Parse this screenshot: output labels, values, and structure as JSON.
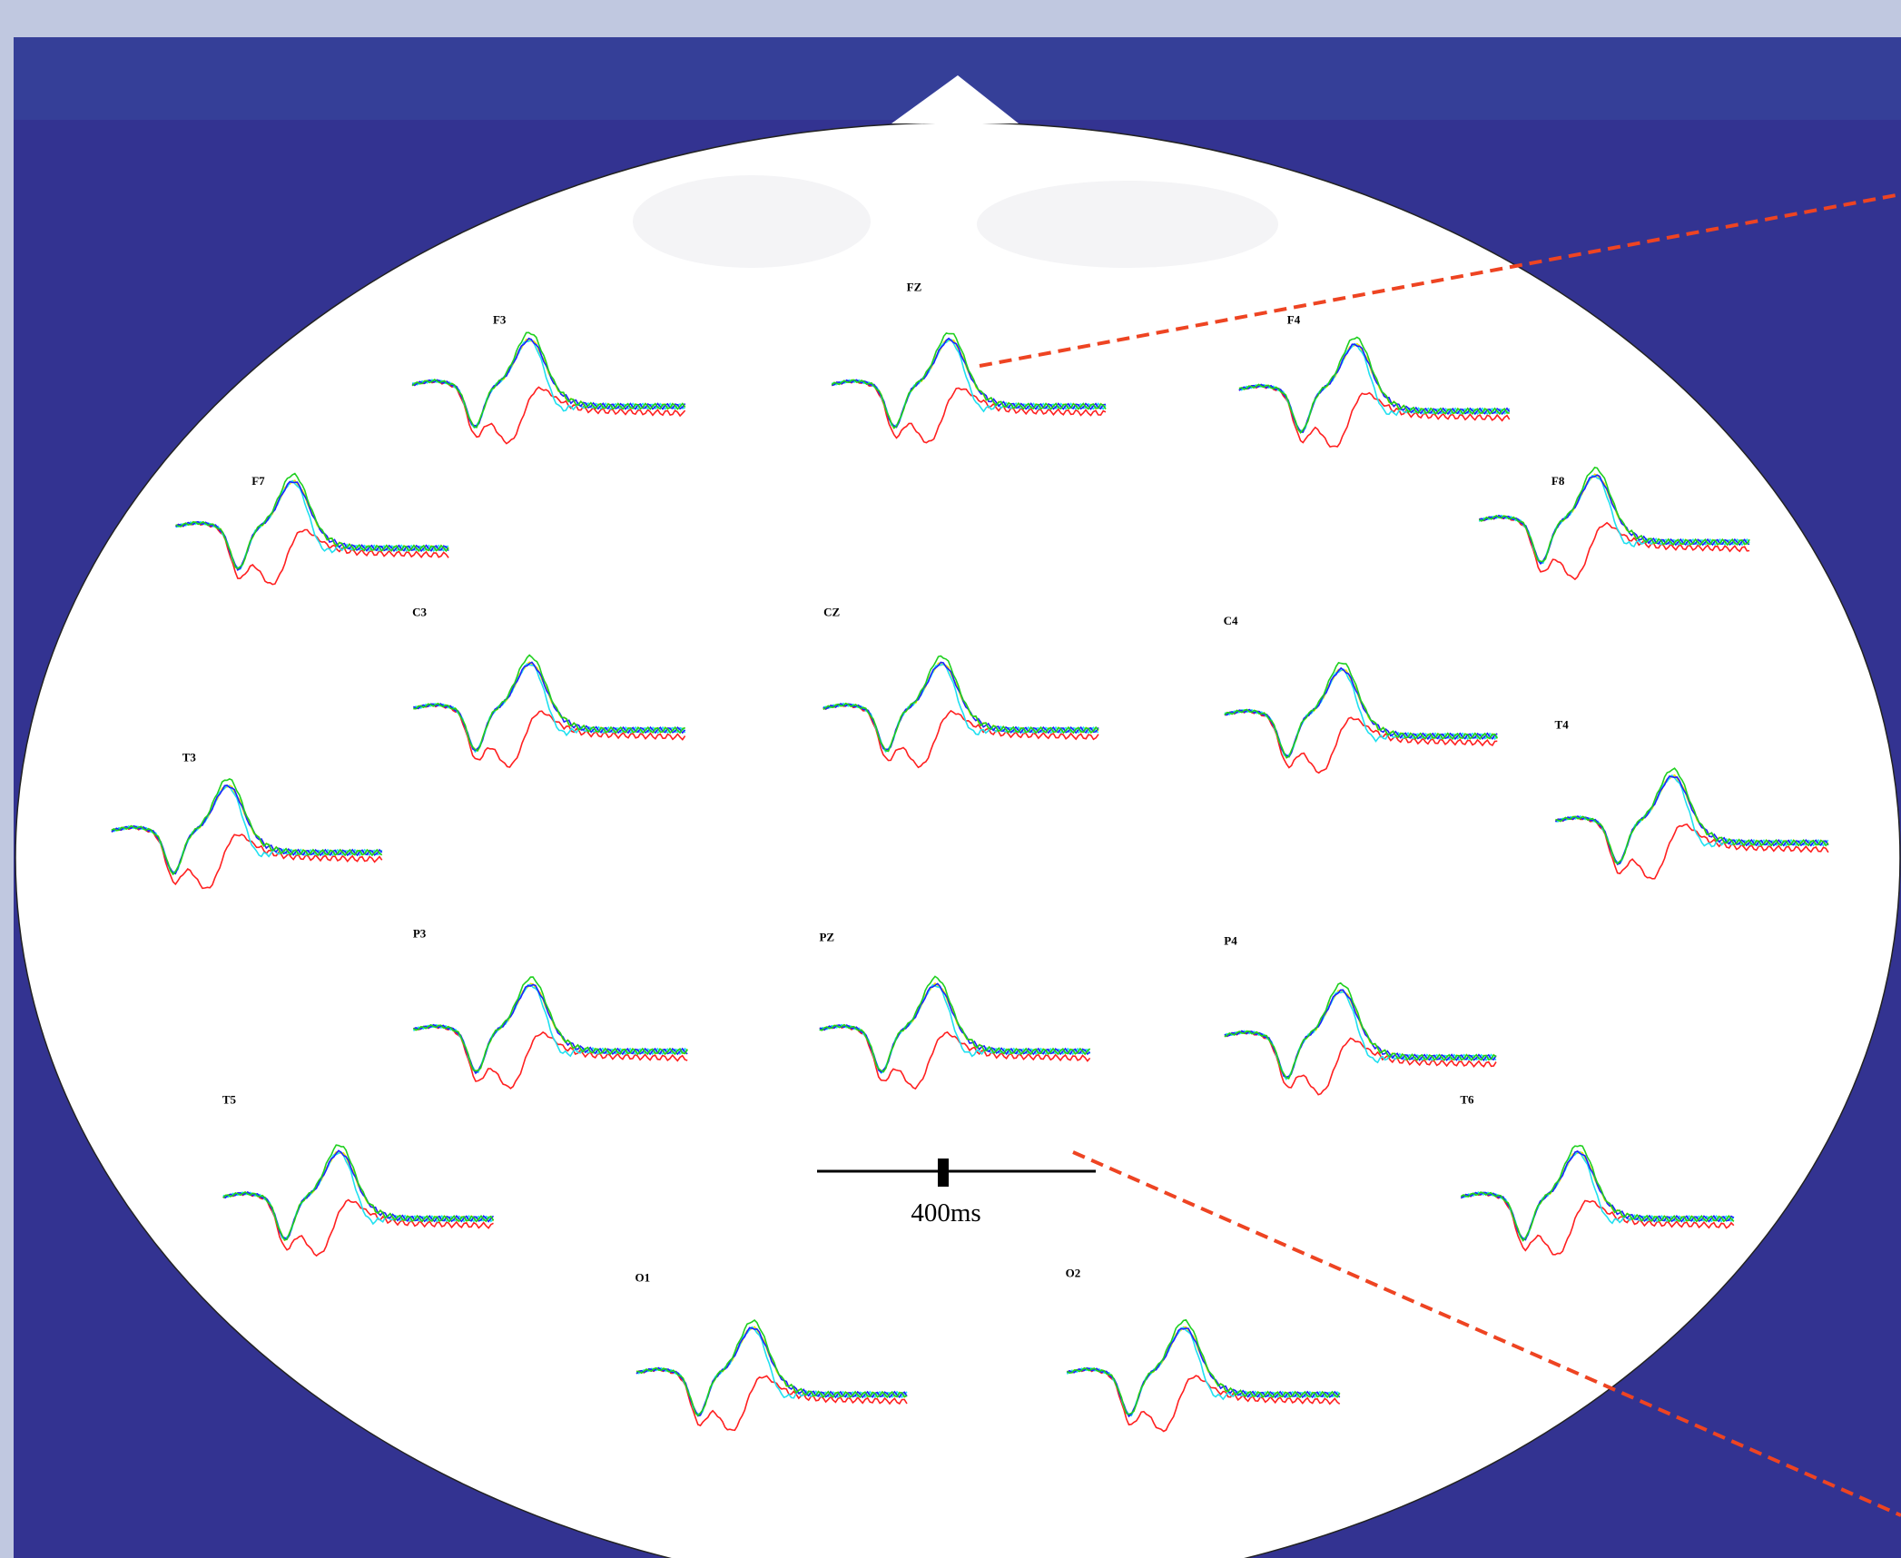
{
  "electrodes": [
    {
      "label": "F3"
    },
    {
      "label": "FZ"
    },
    {
      "label": "F4"
    },
    {
      "label": "F7"
    },
    {
      "label": "F8"
    },
    {
      "label": "C3"
    },
    {
      "label": "CZ"
    },
    {
      "label": "C4"
    },
    {
      "label": "T3"
    },
    {
      "label": "T4"
    },
    {
      "label": "P3"
    },
    {
      "label": "PZ"
    },
    {
      "label": "P4"
    },
    {
      "label": "T5"
    },
    {
      "label": "T6"
    },
    {
      "label": "O1"
    },
    {
      "label": "O2"
    }
  ],
  "scale_bar": {
    "label": "400ms"
  }
}
